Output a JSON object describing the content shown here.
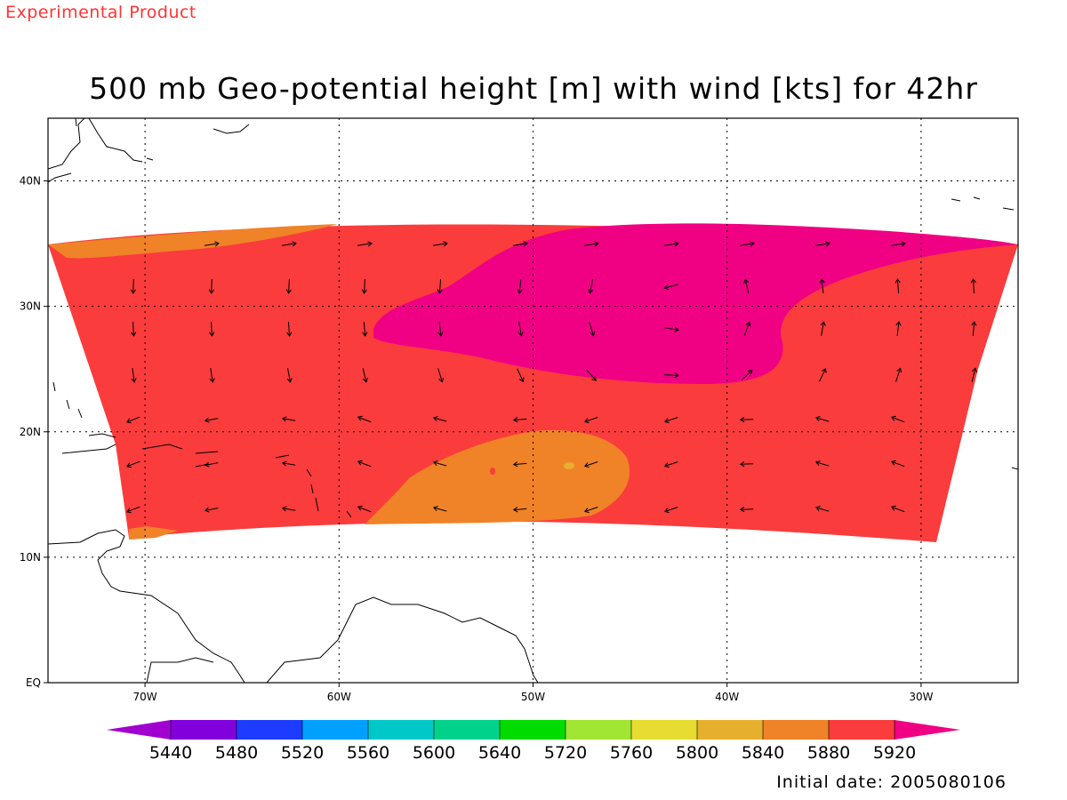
{
  "header": {
    "experimental_label": "Experimental Product",
    "title": "500 mb Geo-potential height [m] with wind [kts] for 42hr"
  },
  "footer": {
    "initial_date": "Initial date: 2005080106"
  },
  "map": {
    "lon_range": [
      -75,
      -25
    ],
    "lat_range": [
      0,
      45
    ],
    "lon_ticks": [
      {
        "value": -70,
        "label": "70W"
      },
      {
        "value": -60,
        "label": "60W"
      },
      {
        "value": -50,
        "label": "50W"
      },
      {
        "value": -40,
        "label": "40W"
      },
      {
        "value": -30,
        "label": "30W"
      }
    ],
    "lat_ticks": [
      {
        "value": 0,
        "label": "EQ"
      },
      {
        "value": 10,
        "label": "10N"
      },
      {
        "value": 20,
        "label": "20N"
      },
      {
        "value": 30,
        "label": "30N"
      },
      {
        "value": 40,
        "label": "40N"
      }
    ],
    "grid": "dotted"
  },
  "colorbar": {
    "levels": [
      "5440",
      "5480",
      "5520",
      "5560",
      "5600",
      "5640",
      "5720",
      "5760",
      "5800",
      "5840",
      "5880",
      "5920"
    ],
    "colors": [
      "#a000d0",
      "#8200dc",
      "#1e3cff",
      "#00a0ff",
      "#00c8c8",
      "#00d28c",
      "#00dc00",
      "#a0e632",
      "#e6dc32",
      "#e6af2d",
      "#f08228",
      "#fa3c3c",
      "#f00082"
    ]
  },
  "chart_data": {
    "type": "heatmap",
    "title": "500 mb Geo-potential height [m] with wind [kts] for 42hr",
    "variable": "500 mb geopotential height",
    "units": "m",
    "overlay": "wind vectors [kts]",
    "forecast_hour": "42hr",
    "region": {
      "lon": [
        -75,
        -25
      ],
      "lat": [
        0,
        45
      ]
    },
    "regions": [
      {
        "range": "5880-5920",
        "color": "#f08228",
        "area": "northwest edge near 35N, 75W-60W"
      },
      {
        "range": "5880-5920",
        "color": "#f08228",
        "area": "15N-20N, 57W-47W"
      },
      {
        "range": "5920+",
        "color": "#f00082",
        "area": "24N-36N, 60W-25W"
      },
      {
        "range": "5840-5880",
        "color": "#e6af2d",
        "area": "17N, 47W (small spot)"
      },
      {
        "range": "5920 (red)",
        "color": "#fa3c3c",
        "area": "remainder of domain 12N-36N"
      }
    ]
  }
}
